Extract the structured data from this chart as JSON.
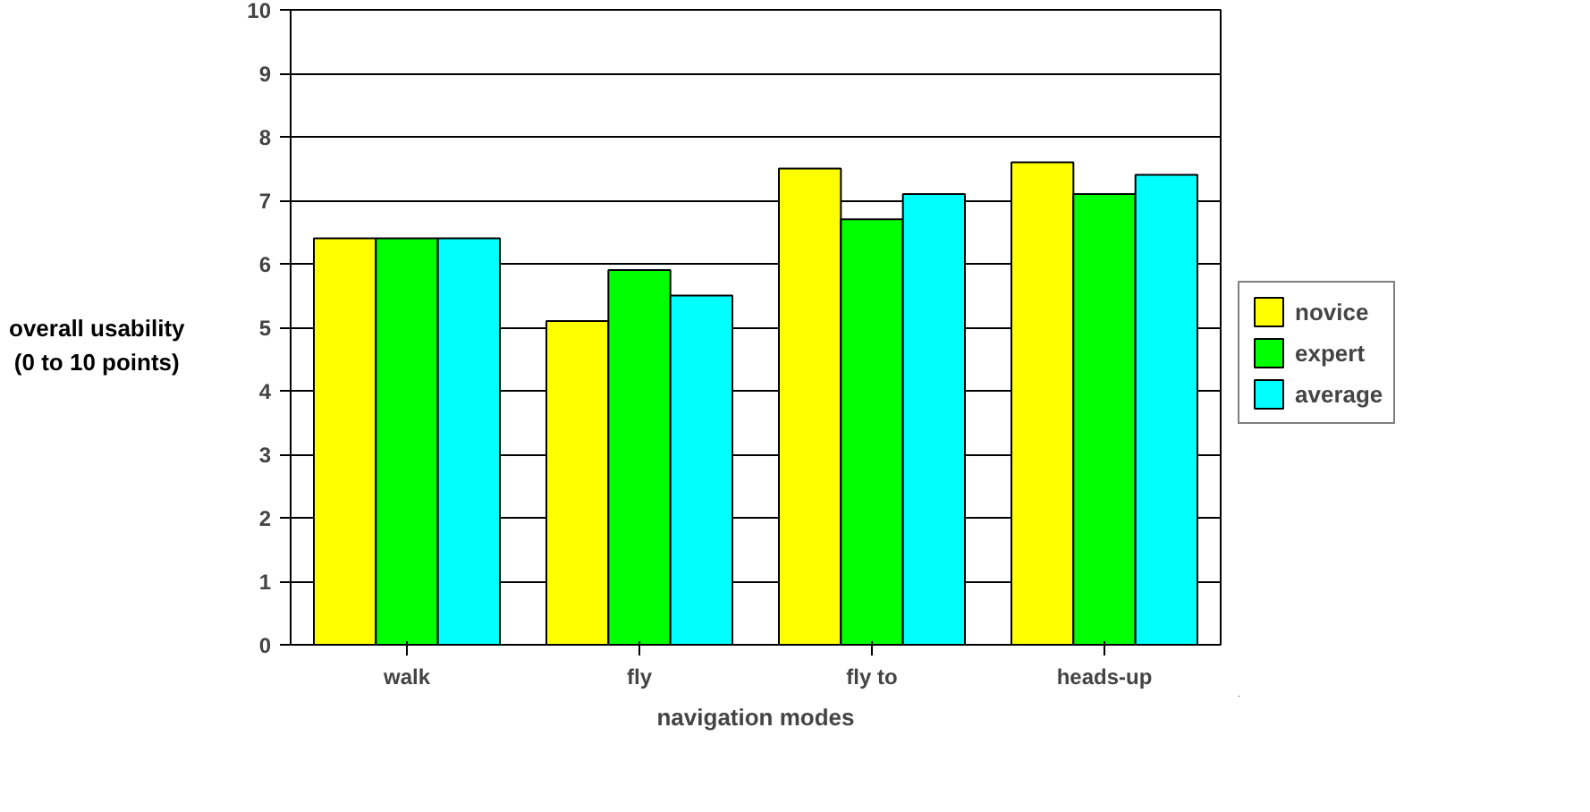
{
  "chart_data": {
    "type": "bar",
    "xlabel": "navigation modes",
    "ylabel": "overall usability\n(0 to 10 points)",
    "categories": [
      "walk",
      "fly",
      "fly to",
      "heads-up"
    ],
    "series": [
      {
        "name": "novice",
        "color": "#ffff00",
        "values": [
          6.4,
          5.1,
          7.5,
          7.6
        ]
      },
      {
        "name": "expert",
        "color": "#00ff00",
        "values": [
          6.4,
          5.9,
          6.7,
          7.1
        ]
      },
      {
        "name": "average",
        "color": "#00ffff",
        "values": [
          6.4,
          5.5,
          7.1,
          7.4
        ]
      }
    ],
    "ylim": [
      0,
      10
    ],
    "yticks": [
      0,
      1,
      2,
      3,
      4,
      5,
      6,
      7,
      8,
      9,
      10
    ],
    "grid": "y",
    "legend": "right"
  }
}
